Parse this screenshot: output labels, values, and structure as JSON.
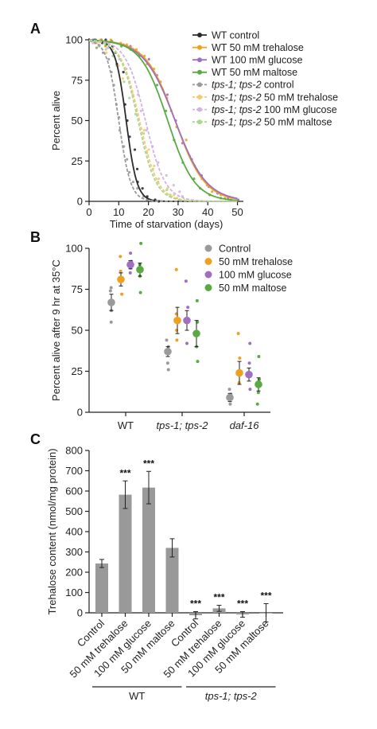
{
  "colors": {
    "control": "#2b2b2b",
    "trehalose": "#f0a020",
    "glucose": "#a070c0",
    "maltose": "#5aaa44",
    "control_light": "#9a9a9a",
    "trehalose_light": "#f5c878",
    "glucose_light": "#d2b4e0",
    "maltose_light": "#a8d890",
    "bar": "#999999"
  },
  "chart_data": [
    {
      "panel": "A",
      "type": "line",
      "xlabel": "Time of starvation (days)",
      "ylabel": "Percent alive",
      "xlim": [
        0,
        52
      ],
      "ylim": [
        0,
        100
      ],
      "xticks": [
        "0",
        "10",
        "20",
        "30",
        "40",
        "50"
      ],
      "yticks": [
        "0",
        "25",
        "50",
        "75",
        "100"
      ],
      "grid": false,
      "legend_position": "top-right",
      "legend": [
        {
          "label": "WT control",
          "color": "#2b2b2b",
          "style": "solid",
          "italic_prefix": ""
        },
        {
          "label": "WT 50 mM trehalose",
          "color": "#f0a020",
          "style": "solid",
          "italic_prefix": ""
        },
        {
          "label": "WT 100 mM glucose",
          "color": "#a070c0",
          "style": "solid",
          "italic_prefix": ""
        },
        {
          "label": "WT 50 mM maltose",
          "color": "#5aaa44",
          "style": "solid",
          "italic_prefix": ""
        },
        {
          "label": " control",
          "color": "#9a9a9a",
          "style": "dashed",
          "italic_prefix": "tps-1; tps-2"
        },
        {
          "label": " 50 mM trehalose",
          "color": "#f5c878",
          "style": "dashed",
          "italic_prefix": "tps-1; tps-2"
        },
        {
          "label": " 100 mM glucose",
          "color": "#d2b4e0",
          "style": "dashed",
          "italic_prefix": "tps-1; tps-2"
        },
        {
          "label": " 50 mM maltose",
          "color": "#a8d890",
          "style": "dashed",
          "italic_prefix": "tps-1; tps-2"
        }
      ],
      "series": [
        {
          "color": "#2b2b2b",
          "style": "solid",
          "t50": 12.5,
          "k": 0.55,
          "points": [
            [
              2,
              100
            ],
            [
              4,
              100
            ],
            [
              5,
              98
            ],
            [
              6,
              100
            ],
            [
              8,
              96
            ],
            [
              9,
              92
            ],
            [
              10,
              85
            ],
            [
              11,
              80
            ],
            [
              12,
              60
            ],
            [
              13,
              50
            ],
            [
              14,
              40
            ],
            [
              15,
              32
            ],
            [
              16,
              20
            ],
            [
              17,
              12
            ],
            [
              18,
              8
            ],
            [
              20,
              3
            ],
            [
              22,
              1
            ],
            [
              24,
              0
            ]
          ]
        },
        {
          "color": "#f0a020",
          "style": "solid",
          "t50": 29,
          "k": 0.2,
          "points": [
            [
              2,
              98
            ],
            [
              4,
              100
            ],
            [
              6,
              96
            ],
            [
              8,
              100
            ],
            [
              10,
              98
            ],
            [
              12,
              97
            ],
            [
              14,
              95
            ],
            [
              16,
              94
            ],
            [
              18,
              90
            ],
            [
              20,
              85
            ],
            [
              22,
              82
            ],
            [
              24,
              74
            ],
            [
              26,
              64
            ],
            [
              28,
              56
            ],
            [
              30,
              46
            ],
            [
              32,
              38
            ],
            [
              34,
              28
            ],
            [
              36,
              22
            ],
            [
              38,
              14
            ],
            [
              40,
              10
            ],
            [
              42,
              6
            ],
            [
              44,
              4
            ],
            [
              46,
              2
            ],
            [
              48,
              1
            ]
          ]
        },
        {
          "color": "#a070c0",
          "style": "solid",
          "t50": 29,
          "k": 0.19,
          "points": [
            [
              2,
              100
            ],
            [
              5,
              98
            ],
            [
              8,
              99
            ],
            [
              11,
              97
            ],
            [
              14,
              96
            ],
            [
              17,
              92
            ],
            [
              20,
              88
            ],
            [
              23,
              78
            ],
            [
              26,
              66
            ],
            [
              29,
              50
            ],
            [
              32,
              36
            ],
            [
              35,
              26
            ],
            [
              38,
              16
            ],
            [
              41,
              9
            ],
            [
              44,
              5
            ],
            [
              47,
              2
            ],
            [
              50,
              1
            ]
          ]
        },
        {
          "color": "#5aaa44",
          "style": "solid",
          "t50": 26.5,
          "k": 0.22,
          "points": [
            [
              2,
              100
            ],
            [
              5,
              97
            ],
            [
              8,
              99
            ],
            [
              11,
              96
            ],
            [
              14,
              94
            ],
            [
              17,
              90
            ],
            [
              20,
              84
            ],
            [
              23,
              72
            ],
            [
              26,
              56
            ],
            [
              29,
              38
            ],
            [
              32,
              24
            ],
            [
              35,
              14
            ],
            [
              38,
              8
            ],
            [
              41,
              4
            ],
            [
              44,
              2
            ]
          ]
        },
        {
          "color": "#9a9a9a",
          "style": "dashed",
          "t50": 10,
          "k": 0.5,
          "points": [
            [
              2,
              95
            ],
            [
              4,
              92
            ],
            [
              6,
              88
            ],
            [
              7,
              80
            ],
            [
              8,
              72
            ],
            [
              9,
              60
            ],
            [
              10,
              52
            ],
            [
              11,
              44
            ],
            [
              12,
              34
            ],
            [
              13,
              26
            ],
            [
              14,
              18
            ],
            [
              15,
              12
            ],
            [
              16,
              8
            ],
            [
              18,
              3
            ],
            [
              20,
              1
            ]
          ]
        },
        {
          "color": "#f5c878",
          "style": "dashed",
          "t50": 17,
          "k": 0.32,
          "points": [
            [
              2,
              98
            ],
            [
              4,
              96
            ],
            [
              6,
              92
            ],
            [
              8,
              90
            ],
            [
              10,
              84
            ],
            [
              12,
              76
            ],
            [
              14,
              66
            ],
            [
              16,
              56
            ],
            [
              18,
              44
            ],
            [
              20,
              32
            ],
            [
              22,
              22
            ],
            [
              24,
              14
            ],
            [
              26,
              8
            ],
            [
              28,
              4
            ],
            [
              30,
              2
            ]
          ]
        },
        {
          "color": "#d2b4e0",
          "style": "dashed",
          "t50": 19,
          "k": 0.3,
          "points": [
            [
              2,
              98
            ],
            [
              4,
              97
            ],
            [
              6,
              95
            ],
            [
              8,
              92
            ],
            [
              10,
              88
            ],
            [
              12,
              82
            ],
            [
              14,
              74
            ],
            [
              16,
              66
            ],
            [
              18,
              56
            ],
            [
              20,
              44
            ],
            [
              22,
              34
            ],
            [
              24,
              24
            ],
            [
              26,
              16
            ],
            [
              28,
              10
            ],
            [
              30,
              6
            ],
            [
              32,
              3
            ]
          ]
        },
        {
          "color": "#a8d890",
          "style": "dashed",
          "t50": 16.5,
          "k": 0.33,
          "points": [
            [
              2,
              98
            ],
            [
              4,
              96
            ],
            [
              6,
              94
            ],
            [
              8,
              90
            ],
            [
              10,
              84
            ],
            [
              12,
              74
            ],
            [
              14,
              64
            ],
            [
              16,
              54
            ],
            [
              18,
              42
            ],
            [
              20,
              30
            ],
            [
              22,
              20
            ],
            [
              24,
              12
            ],
            [
              26,
              7
            ],
            [
              28,
              4
            ]
          ]
        }
      ]
    },
    {
      "panel": "B",
      "type": "scatter",
      "xlabel": "",
      "ylabel": "Percent alive after 9 hr at 35°C",
      "ylim": [
        0,
        100
      ],
      "yticks": [
        "0",
        "25",
        "50",
        "75",
        "100"
      ],
      "categories": [
        "WT",
        "tps-1; tps-2",
        "daf-16"
      ],
      "legend_position": "top-right",
      "series": [
        {
          "name": "Control",
          "color": "#9a9a9a",
          "means": [
            67,
            37,
            9
          ],
          "errors": [
            5,
            3,
            2.5
          ],
          "points": [
            [
              76,
              74,
              62,
              55
            ],
            [
              44,
              40,
              30,
              26
            ],
            [
              14,
              11,
              8,
              5
            ]
          ]
        },
        {
          "name": "50 mM trehalose",
          "color": "#f0a020",
          "means": [
            81,
            56,
            24
          ],
          "errors": [
            4,
            8,
            7
          ],
          "points": [
            [
              95,
              86,
              80,
              72
            ],
            [
              87,
              60,
              50,
              44
            ],
            [
              48,
              33,
              25,
              18
            ]
          ]
        },
        {
          "name": "100 mM glucose",
          "color": "#a070c0",
          "means": [
            90,
            56,
            23
          ],
          "errors": [
            2.5,
            6,
            4
          ],
          "points": [
            [
              97,
              92,
              88,
              85
            ],
            [
              80,
              64,
              55,
              42
            ],
            [
              42,
              30,
              22,
              14
            ]
          ]
        },
        {
          "name": "50 mM maltose",
          "color": "#5aaa44",
          "means": [
            87,
            48,
            17
          ],
          "errors": [
            4,
            8,
            4
          ],
          "points": [
            [
              103,
              90,
              83,
              73
            ],
            [
              68,
              55,
              40,
              31
            ],
            [
              34,
              20,
              12,
              5
            ]
          ]
        }
      ]
    },
    {
      "panel": "C",
      "type": "bar",
      "ylabel": "Trehalose content (nmol/mg protein)",
      "ylim": [
        0,
        800
      ],
      "yticks": [
        "0",
        "100",
        "200",
        "300",
        "400",
        "500",
        "600",
        "700",
        "800"
      ],
      "categories": [
        "Control",
        "50 mM trehalose",
        "100 mM glucose",
        "50 mM maltose",
        "Control",
        "50 mM trehalose",
        "100 mM glucose",
        "50 mM maltose"
      ],
      "values": [
        243,
        582,
        617,
        320,
        -12,
        22,
        -8,
        0
      ],
      "errors": [
        20,
        68,
        80,
        45,
        18,
        15,
        14,
        45
      ],
      "significance": [
        "",
        "***",
        "***",
        "",
        "***",
        "***",
        "***",
        "***"
      ],
      "groups": [
        {
          "label": "WT",
          "italic": false,
          "from": 0,
          "to": 3
        },
        {
          "label": "tps-1; tps-2",
          "italic": true,
          "from": 4,
          "to": 7
        }
      ]
    }
  ],
  "panels": {
    "a_letter": "A",
    "b_letter": "B",
    "c_letter": "C"
  }
}
